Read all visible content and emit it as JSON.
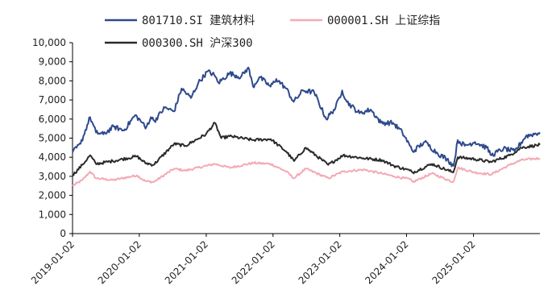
{
  "chart_data": {
    "type": "line",
    "title": "",
    "xlabel": "",
    "ylabel": "",
    "ylim": [
      0,
      10000
    ],
    "yticks": [
      0,
      1000,
      2000,
      3000,
      4000,
      5000,
      6000,
      7000,
      8000,
      9000,
      10000
    ],
    "ytick_labels": [
      "0",
      "1,000",
      "2,000",
      "3,000",
      "4,000",
      "5,000",
      "6,000",
      "7,000",
      "8,000",
      "9,000",
      "10,000"
    ],
    "xlim": [
      "2019-01-02",
      "2025-12-31"
    ],
    "xtick_labels": [
      "2019-01-02",
      "2020-01-02",
      "2021-01-02",
      "2022-01-02",
      "2023-01-02",
      "2024-01-02",
      "2025-01-02"
    ],
    "grid": false,
    "legend_position": "top",
    "series": [
      {
        "name": "801710.SI 建筑材料",
        "color": "#2e4a8c",
        "x": [
          "2019-01-02",
          "2019-02-15",
          "2019-04-08",
          "2019-05-10",
          "2019-06-20",
          "2019-08-15",
          "2019-10-10",
          "2019-12-10",
          "2020-01-20",
          "2020-02-05",
          "2020-03-05",
          "2020-03-25",
          "2020-05-20",
          "2020-07-10",
          "2020-08-20",
          "2020-10-10",
          "2020-11-20",
          "2021-01-10",
          "2021-02-15",
          "2021-03-10",
          "2021-05-10",
          "2021-07-10",
          "2021-08-20",
          "2021-09-15",
          "2021-10-20",
          "2021-12-20",
          "2022-01-20",
          "2022-03-15",
          "2022-04-25",
          "2022-06-15",
          "2022-08-15",
          "2022-10-20",
          "2022-12-10",
          "2023-01-15",
          "2023-02-10",
          "2023-04-20",
          "2023-06-20",
          "2023-08-15",
          "2023-10-20",
          "2023-12-10",
          "2024-01-20",
          "2024-02-05",
          "2024-04-10",
          "2024-06-20",
          "2024-08-10",
          "2024-09-15",
          "2024-10-08",
          "2024-11-15",
          "2025-01-10",
          "2025-03-15",
          "2025-04-10",
          "2025-06-15",
          "2025-08-15",
          "2025-10-15",
          "2025-12-31"
        ],
        "y": [
          4250,
          4700,
          6100,
          5300,
          5200,
          5600,
          5400,
          6200,
          5800,
          5500,
          6100,
          5900,
          6600,
          6400,
          7600,
          7100,
          7900,
          8500,
          8300,
          7900,
          8400,
          8200,
          8700,
          7700,
          8200,
          7700,
          8100,
          7600,
          6900,
          7500,
          7400,
          6000,
          6600,
          7500,
          6900,
          6300,
          6500,
          5800,
          5800,
          5300,
          4600,
          4300,
          4800,
          4200,
          3900,
          3550,
          4900,
          4600,
          4800,
          4500,
          4100,
          4450,
          4300,
          5100,
          5300
        ]
      },
      {
        "name": "000001.SH 上证综指",
        "color": "#f4a9b5",
        "x": [
          "2019-01-02",
          "2019-02-25",
          "2019-04-08",
          "2019-05-10",
          "2019-08-10",
          "2019-12-20",
          "2020-02-03",
          "2020-03-20",
          "2020-07-10",
          "2020-09-10",
          "2021-02-18",
          "2021-05-10",
          "2021-09-15",
          "2021-12-20",
          "2022-03-15",
          "2022-04-27",
          "2022-06-30",
          "2022-10-31",
          "2023-01-20",
          "2023-05-10",
          "2023-08-20",
          "2023-10-25",
          "2024-01-20",
          "2024-02-05",
          "2024-05-20",
          "2024-09-13",
          "2024-10-08",
          "2025-01-10",
          "2025-04-08",
          "2025-07-20",
          "2025-09-20",
          "2025-12-31"
        ],
        "y": [
          2500,
          2800,
          3250,
          2900,
          2800,
          3050,
          2750,
          2700,
          3400,
          3300,
          3650,
          3450,
          3700,
          3650,
          3250,
          2900,
          3400,
          2900,
          3250,
          3350,
          3150,
          3000,
          2850,
          2700,
          3150,
          2700,
          3450,
          3200,
          3100,
          3600,
          3850,
          3950
        ]
      },
      {
        "name": "000300.SH 沪深300",
        "color": "#2a2a2a",
        "x": [
          "2019-01-02",
          "2019-02-25",
          "2019-04-08",
          "2019-05-10",
          "2019-08-10",
          "2019-12-20",
          "2020-02-03",
          "2020-03-20",
          "2020-07-10",
          "2020-09-10",
          "2020-12-31",
          "2021-02-18",
          "2021-03-25",
          "2021-05-10",
          "2021-09-15",
          "2021-12-20",
          "2022-03-15",
          "2022-04-27",
          "2022-06-30",
          "2022-10-31",
          "2023-01-20",
          "2023-05-10",
          "2023-08-20",
          "2023-10-25",
          "2024-01-20",
          "2024-02-05",
          "2024-05-20",
          "2024-09-13",
          "2024-10-08",
          "2025-01-10",
          "2025-04-08",
          "2025-07-20",
          "2025-09-20",
          "2025-12-31"
        ],
        "y": [
          3050,
          3600,
          4100,
          3650,
          3800,
          4050,
          3700,
          3600,
          4700,
          4600,
          5200,
          5800,
          5000,
          5100,
          4900,
          4950,
          4300,
          3800,
          4500,
          3600,
          4100,
          3950,
          3850,
          3550,
          3300,
          3200,
          3650,
          3200,
          4000,
          3900,
          3750,
          4100,
          4500,
          4650
        ]
      }
    ]
  }
}
